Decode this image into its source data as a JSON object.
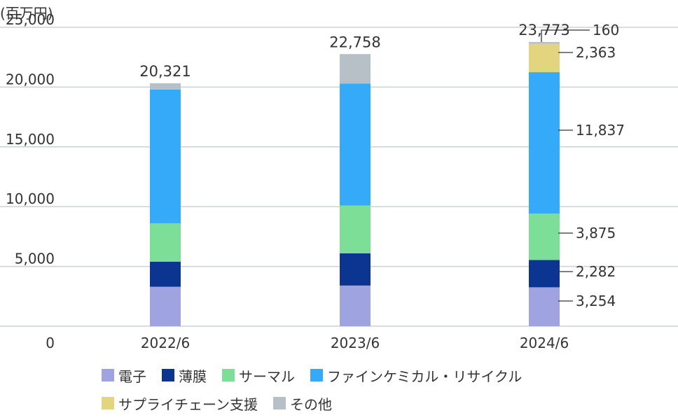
{
  "chart_data": {
    "type": "bar",
    "stacked": true,
    "unit_label": "(百万円)",
    "categories": [
      "2022/6",
      "2023/6",
      "2024/6"
    ],
    "y_ticks": [
      "0",
      "5,000",
      "10,000",
      "15,000",
      "20,000",
      "25,000"
    ],
    "ylim": [
      0,
      25000
    ],
    "grid": true,
    "legend_position": "bottom",
    "series": [
      {
        "name": "電子",
        "color": "#9fa3df",
        "values": [
          3300,
          3400,
          3254
        ]
      },
      {
        "name": "薄膜",
        "color": "#0b3591",
        "values": [
          2100,
          2700,
          2282
        ]
      },
      {
        "name": "サーマル",
        "color": "#7ddf97",
        "values": [
          3200,
          4000,
          3875
        ]
      },
      {
        "name": "ファインケミカル・リサイクル",
        "color": "#35aaf8",
        "values": [
          11200,
          10200,
          11837
        ]
      },
      {
        "name": "サプライチェーン支援",
        "color": "#e3d57f",
        "values": [
          0,
          0,
          2363
        ]
      },
      {
        "name": "その他",
        "color": "#b8c0c7",
        "values": [
          521,
          2458,
          160
        ]
      }
    ],
    "totals": [
      {
        "value": 20321,
        "label": "20,321"
      },
      {
        "value": 22758,
        "label": "22,758"
      },
      {
        "value": 23773,
        "label": "23,773"
      }
    ],
    "annotations_2024": [
      "3,254",
      "2,282",
      "3,875",
      "11,837",
      "2,363",
      "160"
    ]
  }
}
